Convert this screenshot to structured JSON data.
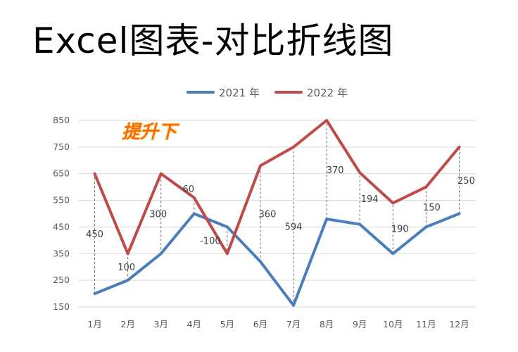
{
  "title": "Excel图表-对比折线图",
  "sticker_text": "提升下",
  "colors": {
    "series_2021": "#4a7ebb",
    "series_2022": "#be4b48",
    "grid": "#d9d9d9",
    "guide": "#555555",
    "sticker_fill": "#ff6a00",
    "sticker_stroke": "#ffe7a0"
  },
  "chart_data": {
    "type": "line",
    "categories": [
      "1月",
      "2月",
      "3月",
      "4月",
      "5月",
      "6月",
      "7月",
      "8月",
      "9月",
      "10月",
      "11月",
      "12月"
    ],
    "series": [
      {
        "name": "2021 年",
        "values": [
          200,
          250,
          350,
          500,
          450,
          320,
          156,
          480,
          460,
          350,
          450,
          500
        ]
      },
      {
        "name": "2022 年",
        "values": [
          650,
          350,
          650,
          560,
          350,
          680,
          750,
          850,
          654,
          540,
          600,
          750
        ]
      }
    ],
    "diff_labels": [
      "450",
      "100",
      "300",
      "60",
      "-100",
      "360",
      "594",
      "370",
      "194",
      "190",
      "150",
      "250"
    ],
    "yticks": [
      150,
      250,
      350,
      450,
      550,
      650,
      750,
      850
    ],
    "ylim": [
      150,
      850
    ],
    "grid": true,
    "legend_position": "top-center"
  }
}
